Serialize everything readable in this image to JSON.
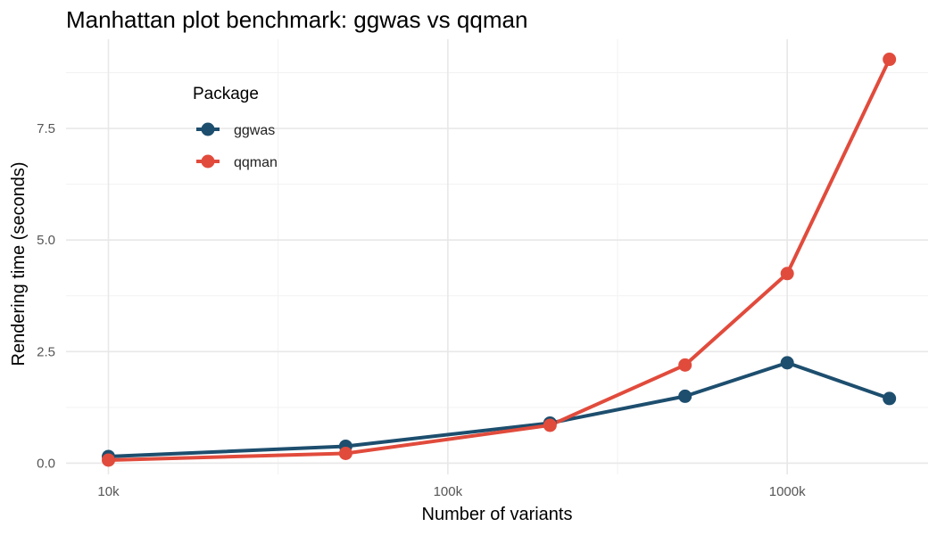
{
  "chart_data": {
    "type": "line",
    "title": "Manhattan plot benchmark: ggwas vs qqman",
    "xlabel": "Number of variants",
    "ylabel": "Rendering time (seconds)",
    "x_scale": "log10",
    "xlim": [
      7500,
      2600000
    ],
    "ylim": [
      -0.25,
      9.5
    ],
    "x_ticks": [
      {
        "value": 10000,
        "label": "10k"
      },
      {
        "value": 100000,
        "label": "100k"
      },
      {
        "value": 1000000,
        "label": "1000k"
      }
    ],
    "y_ticks": [
      {
        "value": 0,
        "label": "0.0"
      },
      {
        "value": 2.5,
        "label": "2.5"
      },
      {
        "value": 5,
        "label": "5.0"
      },
      {
        "value": 7.5,
        "label": "7.5"
      }
    ],
    "grid": true,
    "legend": {
      "title": "Package",
      "position": "top-left"
    },
    "x": [
      10000,
      50000,
      200000,
      500000,
      1000000,
      2000000
    ],
    "series": [
      {
        "name": "ggwas",
        "color": "#1d4e6e",
        "values": [
          0.15,
          0.38,
          0.9,
          1.5,
          2.25,
          1.45
        ]
      },
      {
        "name": "qqman",
        "color": "#e14b3c",
        "values": [
          0.07,
          0.22,
          0.85,
          2.2,
          4.25,
          9.05
        ]
      }
    ]
  }
}
